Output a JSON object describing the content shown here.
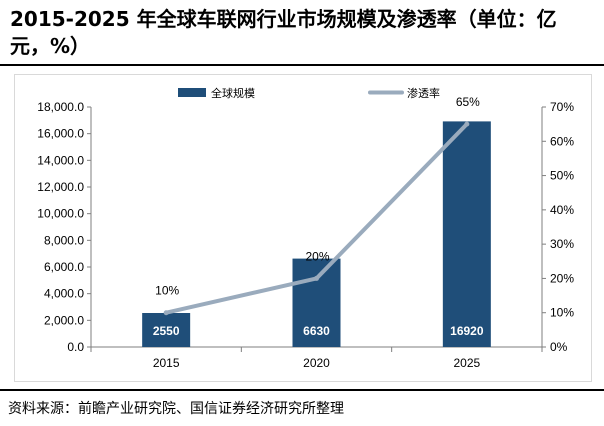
{
  "title": "2015-2025 年全球车联网行业市场规模及渗透率（单位：亿元，%）",
  "source": "资料来源：前瞻产业研究院、国信证券经济研究所整理",
  "chart_data": {
    "type": "bar",
    "categories": [
      "2015",
      "2020",
      "2025"
    ],
    "series": [
      {
        "name": "全球规模",
        "type": "bar",
        "axis": "left",
        "values": [
          2550,
          6630,
          16920
        ],
        "data_labels": [
          "2550",
          "6630",
          "16920"
        ],
        "color": "#1f4e79"
      },
      {
        "name": "渗透率",
        "type": "line",
        "axis": "right",
        "values": [
          10,
          20,
          65
        ],
        "data_labels": [
          "10%",
          "20%",
          "65%"
        ],
        "color": "#9aabbd"
      }
    ],
    "y_left": {
      "lim": [
        0,
        18000
      ],
      "ticks": [
        0,
        2000,
        4000,
        6000,
        8000,
        10000,
        12000,
        14000,
        16000,
        18000
      ],
      "tick_labels": [
        "0.0",
        "2,000.0",
        "4,000.0",
        "6,000.0",
        "8,000.0",
        "10,000.0",
        "12,000.0",
        "14,000.0",
        "16,000.0",
        "18,000.0"
      ]
    },
    "y_right": {
      "lim": [
        0,
        70
      ],
      "ticks": [
        0,
        10,
        20,
        30,
        40,
        50,
        60,
        70
      ],
      "tick_labels": [
        "0%",
        "10%",
        "20%",
        "30%",
        "40%",
        "50%",
        "60%",
        "70%"
      ]
    },
    "legend_position": "top",
    "grid": false
  }
}
